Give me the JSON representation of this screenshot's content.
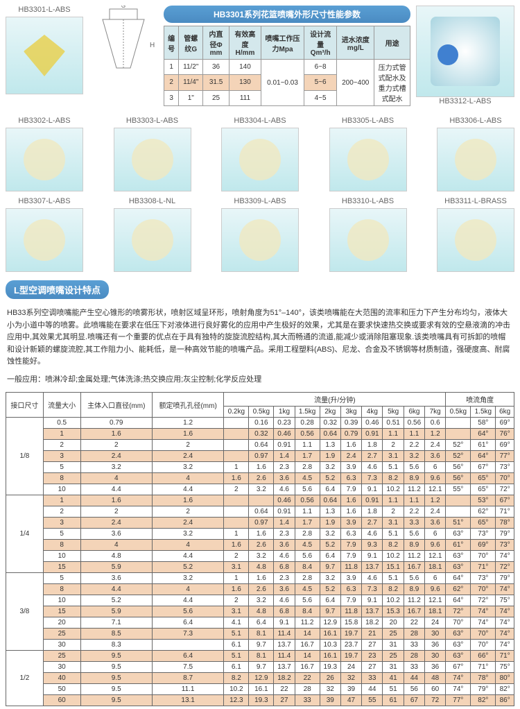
{
  "top": {
    "p1": "HB3301-L-ABS",
    "p2": "HB3312-L-ABS",
    "title": "HB3301系列花篮喷嘴外形尺寸性能参数"
  },
  "spec": {
    "cols": [
      "编号",
      "管螺纹G",
      "内直径Φ mm",
      "有效高度H/mm",
      "喷嘴工作压力Mpa",
      "设计流量Qm³/h",
      "进水浓度mg/L",
      "用途"
    ],
    "rows": [
      [
        "1",
        "11/2\"",
        "36",
        "140",
        "0.01~0.03",
        "6~8",
        "200~400",
        "压力式管式配水及重力式槽式配水"
      ],
      [
        "2",
        "11/4\"",
        "31.5",
        "130",
        "",
        "5~6",
        "",
        ""
      ],
      [
        "3",
        "1\"",
        "25",
        "111",
        "",
        "4~5",
        "",
        ""
      ]
    ]
  },
  "grid1": [
    "HB3302-L-ABS",
    "HB3303-L-ABS",
    "HB3304-L-ABS",
    "HB3305-L-ABS",
    "HB3306-L-ABS"
  ],
  "grid2": [
    "HB3307-L-ABS",
    "HB3308-L-NL",
    "HB3309-L-ABS",
    "HB3310-L-ABS",
    "HB3311-L-BRASS"
  ],
  "sec": "L型空调喷嘴设计特点",
  "desc1": "HB33系列空调喷嘴能产生空心锥形的喷雾形状，喷射区域呈环形，喷射角度为51°–140°，该类喷嘴能在大范围的流率和压力下产生分布均匀，液体大小为小道中等的喷雾。此喷嘴能在要求在低压下对液体进行良好雾化的应用中产生极好的效果，尤其是在要求快速热交换或要求有效的空悬液滴的冲击应用中,其效果尤其明显.喷嘴还有一个重要的优点在于具有独特的旋旋流腔结构,其大而畅通的流道,能减少或消除阻塞现象.该类喷嘴具有可拆卸的喷帽和设计新颖的螺旋流腔,其工作阻力小、能耗低，是一种高效节能的喷嘴产品。采用工程塑料(ABS)、尼龙、合金及不锈钢等材质制造，强硬度高、耐腐蚀性能好。",
  "desc2": "一般应用：喷淋冷却;金属处理;气体洗涤;热交换应用;灰尘控制;化学反应处理",
  "main": {
    "h1": [
      "接口尺寸",
      "流量大小",
      "主体入口直径(mm)",
      "额定喷孔孔径(mm)"
    ],
    "flowH": "流量(升/分钟)",
    "angH": "喷流角度",
    "flowC": [
      "0.2kg",
      "0.5kg",
      "1kg",
      "1.5kg",
      "2kg",
      "3kg",
      "4kg",
      "5kg",
      "6kg",
      "7kg"
    ],
    "angC": [
      "0.5kg",
      "1.5kg",
      "6kg"
    ],
    "groups": [
      {
        "size": "1/8",
        "rows": [
          [
            "0.5",
            "0.79",
            "1.2",
            "",
            "0.16",
            "0.23",
            "0.28",
            "0.32",
            "0.39",
            "0.46",
            "0.51",
            "0.56",
            "0.6",
            "",
            "58°",
            "69°"
          ],
          [
            "1",
            "1.6",
            "1.6",
            "",
            "0.32",
            "0.46",
            "0.56",
            "0.64",
            "0.79",
            "0.91",
            "1.1",
            "1.1",
            "1.2",
            "",
            "64°",
            "76°"
          ],
          [
            "2",
            "2",
            "2",
            "",
            "0.64",
            "0.91",
            "1.1",
            "1.3",
            "1.6",
            "1.8",
            "2",
            "2.2",
            "2.4",
            "52°",
            "61°",
            "69°"
          ],
          [
            "3",
            "2.4",
            "2.4",
            "",
            "0.97",
            "1.4",
            "1.7",
            "1.9",
            "2.4",
            "2.7",
            "3.1",
            "3.2",
            "3.6",
            "52°",
            "64°",
            "77°"
          ],
          [
            "5",
            "3.2",
            "3.2",
            "1",
            "1.6",
            "2.3",
            "2.8",
            "3.2",
            "3.9",
            "4.6",
            "5.1",
            "5.6",
            "6",
            "56°",
            "67°",
            "73°"
          ],
          [
            "8",
            "4",
            "4",
            "1.6",
            "2.6",
            "3.6",
            "4.5",
            "5.2",
            "6.3",
            "7.3",
            "8.2",
            "8.9",
            "9.6",
            "56°",
            "65°",
            "70°"
          ],
          [
            "10",
            "4.4",
            "4.4",
            "2",
            "3.2",
            "4.6",
            "5.6",
            "6.4",
            "7.9",
            "9.1",
            "10.2",
            "11.2",
            "12.1",
            "55°",
            "65°",
            "72°"
          ]
        ]
      },
      {
        "size": "1/4",
        "rows": [
          [
            "1",
            "1.6",
            "1.6",
            "",
            "",
            "0.46",
            "0.56",
            "0.64",
            "1.6",
            "0.91",
            "1.1",
            "1.1",
            "1.2",
            "",
            "53°",
            "67°"
          ],
          [
            "2",
            "2",
            "2",
            "",
            "0.64",
            "0.91",
            "1.1",
            "1.3",
            "1.6",
            "1.8",
            "2",
            "2.2",
            "2.4",
            "",
            "62°",
            "71°"
          ],
          [
            "3",
            "2.4",
            "2.4",
            "",
            "0.97",
            "1.4",
            "1.7",
            "1.9",
            "3.9",
            "2.7",
            "3.1",
            "3.3",
            "3.6",
            "51°",
            "65°",
            "78°"
          ],
          [
            "5",
            "3.6",
            "3.2",
            "1",
            "1.6",
            "2.3",
            "2.8",
            "3.2",
            "6.3",
            "4.6",
            "5.1",
            "5.6",
            "6",
            "63°",
            "73°",
            "79°"
          ],
          [
            "8",
            "4",
            "4",
            "1.6",
            "2.6",
            "3.6",
            "4.5",
            "5.2",
            "7.9",
            "9.3",
            "8.2",
            "8.9",
            "9.6",
            "61°",
            "69°",
            "73°"
          ],
          [
            "10",
            "4.8",
            "4.4",
            "2",
            "3.2",
            "4.6",
            "5.6",
            "6.4",
            "7.9",
            "9.1",
            "10.2",
            "11.2",
            "12.1",
            "63°",
            "70°",
            "74°"
          ],
          [
            "15",
            "5.9",
            "5.2",
            "3.1",
            "4.8",
            "6.8",
            "8.4",
            "9.7",
            "11.8",
            "13.7",
            "15.1",
            "16.7",
            "18.1",
            "63°",
            "71°",
            "72°"
          ]
        ]
      },
      {
        "size": "3/8",
        "rows": [
          [
            "5",
            "3.6",
            "3.2",
            "1",
            "1.6",
            "2.3",
            "2.8",
            "3.2",
            "3.9",
            "4.6",
            "5.1",
            "5.6",
            "6",
            "64°",
            "73°",
            "79°"
          ],
          [
            "8",
            "4.4",
            "4",
            "1.6",
            "2.6",
            "3.6",
            "4.5",
            "5.2",
            "6.3",
            "7.3",
            "8.2",
            "8.9",
            "9.6",
            "62°",
            "70°",
            "74°"
          ],
          [
            "10",
            "5.2",
            "4.4",
            "2",
            "3.2",
            "4.6",
            "5.6",
            "6.4",
            "7.9",
            "9.1",
            "10.2",
            "11.2",
            "12.1",
            "64°",
            "72°",
            "75°"
          ],
          [
            "15",
            "5.9",
            "5.6",
            "3.1",
            "4.8",
            "6.8",
            "8.4",
            "9.7",
            "11.8",
            "13.7",
            "15.3",
            "16.7",
            "18.1",
            "72°",
            "74°",
            "74°"
          ],
          [
            "20",
            "7.1",
            "6.4",
            "4.1",
            "6.4",
            "9.1",
            "11.2",
            "12.9",
            "15.8",
            "18.2",
            "20",
            "22",
            "24",
            "70°",
            "74°",
            "74°"
          ],
          [
            "25",
            "8.5",
            "7.3",
            "5.1",
            "8.1",
            "11.4",
            "14",
            "16.1",
            "19.7",
            "21",
            "25",
            "28",
            "30",
            "63°",
            "70°",
            "74°"
          ],
          [
            "30",
            "8.3",
            "",
            "6.1",
            "9.7",
            "13.7",
            "16.7",
            "10.3",
            "23.7",
            "27",
            "31",
            "33",
            "36",
            "63°",
            "70°",
            "74°"
          ]
        ]
      },
      {
        "size": "1/2",
        "rows": [
          [
            "25",
            "9.5",
            "6.4",
            "5.1",
            "8.1",
            "11.4",
            "14",
            "16.1",
            "19.7",
            "23",
            "25",
            "28",
            "30",
            "63°",
            "66°",
            "71°"
          ],
          [
            "30",
            "9.5",
            "7.5",
            "6.1",
            "9.7",
            "13.7",
            "16.7",
            "19.3",
            "24",
            "27",
            "31",
            "33",
            "36",
            "67°",
            "71°",
            "75°"
          ],
          [
            "40",
            "9.5",
            "8.7",
            "8.2",
            "12.9",
            "18.2",
            "22",
            "26",
            "32",
            "33",
            "41",
            "44",
            "48",
            "74°",
            "78°",
            "80°"
          ],
          [
            "50",
            "9.5",
            "11.1",
            "10.2",
            "16.1",
            "22",
            "28",
            "32",
            "39",
            "44",
            "51",
            "56",
            "60",
            "74°",
            "79°",
            "82°"
          ],
          [
            "60",
            "9.5",
            "13.1",
            "12.3",
            "19.3",
            "27",
            "33",
            "39",
            "47",
            "55",
            "61",
            "67",
            "72",
            "77°",
            "82°",
            "86°"
          ]
        ]
      }
    ]
  }
}
